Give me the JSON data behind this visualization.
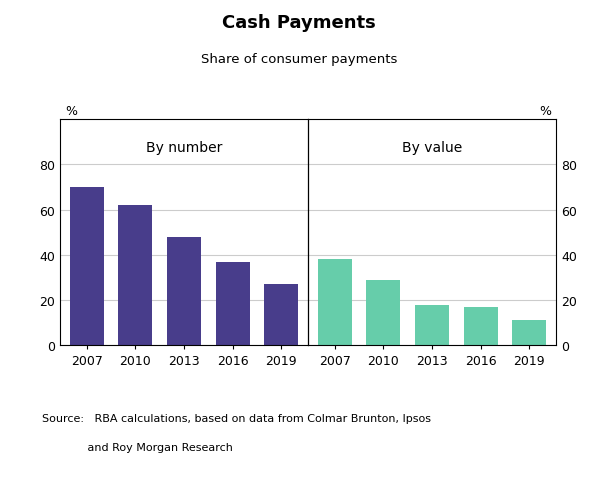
{
  "title": "Cash Payments",
  "subtitle": "Share of consumer payments",
  "left_label": "By number",
  "right_label": "By value",
  "ylabel_left": "%",
  "ylabel_right": "%",
  "source_line1": "Source:   RBA calculations, based on data from Colmar Brunton, Ipsos",
  "source_line2": "             and Roy Morgan Research",
  "categories_left": [
    "2007",
    "2010",
    "2013",
    "2016",
    "2019"
  ],
  "values_left": [
    70,
    62,
    48,
    37,
    27
  ],
  "categories_right": [
    "2007",
    "2010",
    "2013",
    "2016",
    "2019"
  ],
  "values_right": [
    38,
    29,
    18,
    17,
    11
  ],
  "color_left": "#483D8B",
  "color_right": "#66CDAA",
  "ylim": [
    0,
    100
  ],
  "yticks": [
    0,
    20,
    40,
    60,
    80
  ],
  "figsize": [
    5.98,
    4.81
  ],
  "dpi": 100
}
